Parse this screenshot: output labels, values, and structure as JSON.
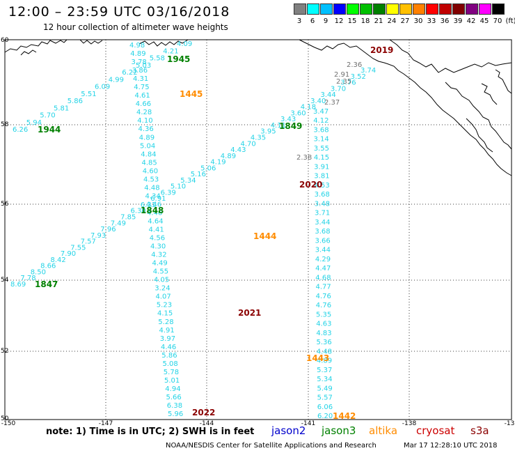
{
  "header": {
    "title": "12:00 – 23:59 UTC 03/16/2018",
    "subtitle": "12 hour collection of altimeter wave heights"
  },
  "scale": {
    "labels": [
      "3",
      "6",
      "9",
      "12",
      "15",
      "18",
      "21",
      "24",
      "27",
      "30",
      "33",
      "36",
      "39",
      "42",
      "45",
      "70",
      "(ft)"
    ],
    "colors": [
      "#808080",
      "#00ffff",
      "#00c0ff",
      "#0000ff",
      "#00ff00",
      "#00c000",
      "#008000",
      "#ffff00",
      "#ffc000",
      "#ff8000",
      "#ff0000",
      "#c00000",
      "#800000",
      "#800080",
      "#ff00ff",
      "#000000"
    ]
  },
  "axes": {
    "lon_labels": [
      "-150",
      "-147",
      "-144",
      "-141",
      "-138",
      "-13"
    ],
    "lat_labels": [
      "60",
      "58",
      "56",
      "54",
      "52",
      "50"
    ]
  },
  "colors": {
    "track": "#22d3e6",
    "gray": "#707070",
    "jason2": "#0000cc",
    "jason3": "#008000",
    "altika": "#ff8c00",
    "cryosat": "#cc0000",
    "s3a": "#8b0000"
  },
  "times": [
    {
      "t": "1945",
      "sat": "jason3"
    },
    {
      "t": "1445",
      "sat": "altika"
    },
    {
      "t": "1944",
      "sat": "jason3"
    },
    {
      "t": "1849",
      "sat": "jason3"
    },
    {
      "t": "1848",
      "sat": "jason3"
    },
    {
      "t": "1847",
      "sat": "jason3"
    },
    {
      "t": "2019",
      "sat": "s3a"
    },
    {
      "t": "2020",
      "sat": "s3a"
    },
    {
      "t": "1444",
      "sat": "altika"
    },
    {
      "t": "2021",
      "sat": "s3a"
    },
    {
      "t": "1443",
      "sat": "altika"
    },
    {
      "t": "2022",
      "sat": "s3a"
    },
    {
      "t": "1442",
      "sat": "altika"
    }
  ],
  "tracks": {
    "a": [
      "4.98",
      "4.89",
      "3.78",
      "3.86",
      "4.31",
      "4.75",
      "4.61",
      "4.66",
      "4.28",
      "4.10",
      "4.36",
      "4.89",
      "5.04",
      "4.84",
      "4.85",
      "4.60",
      "4.53",
      "4.48",
      "4.34",
      "4.46",
      "4.46",
      "4.64",
      "4.41",
      "4.56",
      "4.30",
      "4.32",
      "4.49",
      "4.55",
      "4.05",
      "3.24",
      "4.07",
      "5.23",
      "4.15",
      "5.28",
      "4.91",
      "3.97",
      "4.46",
      "5.86",
      "5.08",
      "5.78",
      "5.01",
      "4.94",
      "5.66",
      "6.38",
      "5.96"
    ],
    "b": [
      "6.26",
      "5.94",
      "5.70",
      "5.81",
      "5.86",
      "5.51",
      "6.09",
      "4.99",
      "6.22",
      "5.03",
      "5.58",
      "4.21",
      "4.09"
    ],
    "c": [
      "8.69",
      "7.78",
      "8.50",
      "8.66",
      "8.42",
      "7.90",
      "7.55",
      "7.57",
      "7.93",
      "7.96",
      "7.49",
      "7.85",
      "6.30",
      "6.31",
      "6.91",
      "6.39",
      "5.10",
      "5.34",
      "5.16",
      "5.06",
      "4.19",
      "4.89",
      "4.43",
      "4.70",
      "4.35",
      "3.95",
      "4.11",
      "3.43",
      "3.60",
      "4.18",
      "3.40",
      "3.44",
      "3.70",
      "3.76",
      "3.52",
      "3.74"
    ],
    "d": [
      "3.47",
      "4.12",
      "3.68",
      "3.14",
      "3.55",
      "4.15",
      "3.91",
      "3.81",
      "4.53",
      "3.68",
      "3.48",
      "3.71",
      "3.44",
      "3.68",
      "3.66",
      "3.44",
      "4.29",
      "4.47",
      "4.68",
      "4.77",
      "4.76",
      "4.76",
      "5.35",
      "4.63",
      "4.83",
      "5.36",
      "4.48",
      "4.89",
      "5.37",
      "5.34",
      "5.49",
      "5.57",
      "6.06",
      "6.20"
    ],
    "gray": [
      "2.36",
      "2.91",
      "2.35",
      "2.37",
      "2.38"
    ]
  },
  "footer": {
    "note": "note: 1) Time is in UTC; 2) SWH is in feet",
    "sats": [
      "jason2",
      "jason3",
      "altika",
      "cryosat",
      "s3a"
    ],
    "credit": "NOAA/NESDIS Center for Satellite Applications and Research",
    "stamp": "Mar 17 12:28:10 UTC 2018"
  }
}
